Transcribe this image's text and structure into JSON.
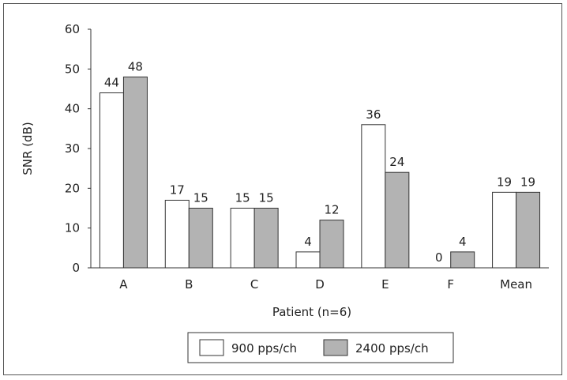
{
  "chart_data": {
    "type": "bar",
    "categories": [
      "A",
      "B",
      "C",
      "D",
      "E",
      "F",
      "Mean"
    ],
    "series": [
      {
        "name": "900 pps/ch",
        "values": [
          44,
          17,
          15,
          4,
          36,
          0,
          19
        ],
        "color": "#ffffff"
      },
      {
        "name": "2400 pps/ch",
        "values": [
          48,
          15,
          15,
          12,
          24,
          4,
          19
        ],
        "color": "#b3b3b3"
      }
    ],
    "xlabel": "Patient (n=6)",
    "ylabel": "SNR (dB)",
    "ylim": [
      0,
      60
    ],
    "yticks": [
      0,
      10,
      20,
      30,
      40,
      50,
      60
    ],
    "data_labels": true,
    "grid": false,
    "legend": "bottom-right"
  }
}
